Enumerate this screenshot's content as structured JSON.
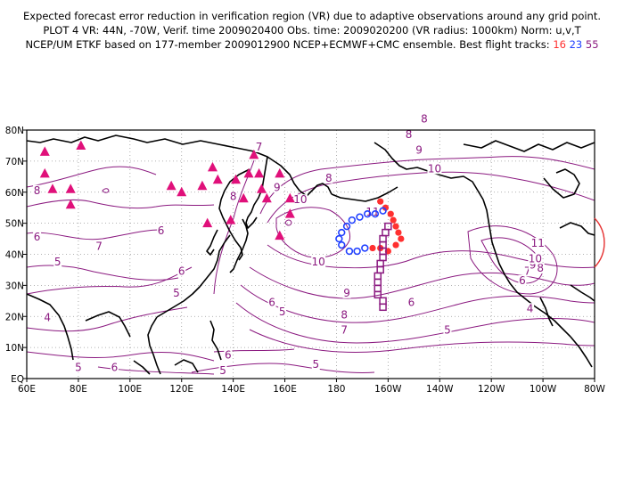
{
  "header": {
    "line1": "Expected forecast error reduction in verification region (VR) due to adaptive observations around any grid point.",
    "line2": "PLOT 4 VR: 44N, -70W, Verif. time 2009020400 Obs. time: 2009020200 (VR radius: 1000km) Norm: u,v,T",
    "line3_prefix": "NCEP/UM ETKF based on 177-member 2009012900 NCEP+ECMWF+CMC ensemble. Best flight tracks:",
    "tracks": [
      "16",
      "23",
      "55"
    ]
  },
  "axes": {
    "lon_ticks": [
      "60E",
      "80E",
      "100E",
      "120E",
      "140E",
      "160E",
      "180",
      "160W",
      "140W",
      "120W",
      "100W",
      "80W"
    ],
    "lat_ticks": [
      "EQ",
      "10N",
      "20N",
      "30N",
      "40N",
      "50N",
      "60N",
      "70N",
      "80N"
    ]
  },
  "contour_labels": [
    {
      "text": "8",
      "lon": 64,
      "lat": 60
    },
    {
      "text": "6",
      "lon": 64,
      "lat": 45
    },
    {
      "text": "5",
      "lon": 72,
      "lat": 37
    },
    {
      "text": "7",
      "lon": 88,
      "lat": 42
    },
    {
      "text": "6",
      "lon": 112,
      "lat": 47
    },
    {
      "text": "6",
      "lon": 120,
      "lat": 34
    },
    {
      "text": "5",
      "lon": 118,
      "lat": 27
    },
    {
      "text": "4",
      "lon": 68,
      "lat": 19
    },
    {
      "text": "5",
      "lon": 80,
      "lat": 3
    },
    {
      "text": "6",
      "lon": 94,
      "lat": 3
    },
    {
      "text": "5",
      "lon": 136,
      "lat": 2
    },
    {
      "text": "6",
      "lon": 138,
      "lat": 7
    },
    {
      "text": "5",
      "lon": 172,
      "lat": 4
    },
    {
      "text": "6",
      "lon": 155,
      "lat": 24
    },
    {
      "text": "5",
      "lon": 159,
      "lat": 21
    },
    {
      "text": "7",
      "lon": 150,
      "lat": 74
    },
    {
      "text": "8",
      "lon": 177,
      "lat": 64
    },
    {
      "text": "8",
      "lon": 208,
      "lat": 78
    },
    {
      "text": "8",
      "lon": 214,
      "lat": 83
    },
    {
      "text": "9",
      "lon": 212,
      "lat": 73
    },
    {
      "text": "10",
      "lon": 218,
      "lat": 67
    },
    {
      "text": "8",
      "lon": 140,
      "lat": 58
    },
    {
      "text": "9",
      "lon": 157,
      "lat": 61
    },
    {
      "text": "10",
      "lon": 166,
      "lat": 57
    },
    {
      "text": "10",
      "lon": 173,
      "lat": 37
    },
    {
      "text": "11",
      "lon": 194,
      "lat": 53
    },
    {
      "text": "9",
      "lon": 184,
      "lat": 27
    },
    {
      "text": "8",
      "lon": 183,
      "lat": 20
    },
    {
      "text": "7",
      "lon": 183,
      "lat": 15
    },
    {
      "text": "6",
      "lon": 209,
      "lat": 24
    },
    {
      "text": "5",
      "lon": 223,
      "lat": 15
    },
    {
      "text": "4",
      "lon": 255,
      "lat": 22
    },
    {
      "text": "6",
      "lon": 252,
      "lat": 31
    },
    {
      "text": "7",
      "lon": 254,
      "lat": 34
    },
    {
      "text": "8",
      "lon": 259,
      "lat": 35
    },
    {
      "text": "9",
      "lon": 256,
      "lat": 36
    },
    {
      "text": "10",
      "lon": 257,
      "lat": 38
    },
    {
      "text": "11",
      "lon": 258,
      "lat": 43
    }
  ],
  "triangle_sites": [
    [
      67,
      73
    ],
    [
      81,
      75
    ],
    [
      67,
      66
    ],
    [
      70,
      61
    ],
    [
      77,
      61
    ],
    [
      77,
      56
    ],
    [
      116,
      62
    ],
    [
      120,
      60
    ],
    [
      128,
      62
    ],
    [
      132,
      68
    ],
    [
      134,
      64
    ],
    [
      141,
      64
    ],
    [
      144,
      58
    ],
    [
      146,
      66
    ],
    [
      148,
      72
    ],
    [
      150,
      66
    ],
    [
      151,
      61
    ],
    [
      153,
      58
    ],
    [
      158,
      66
    ],
    [
      162,
      58
    ],
    [
      162,
      53
    ],
    [
      139,
      51
    ],
    [
      130,
      50
    ],
    [
      158,
      46
    ]
  ],
  "flight_tracks": {
    "t16": {
      "color": "#ff3030",
      "points": [
        [
          197,
          57
        ],
        [
          199,
          55
        ],
        [
          201,
          53
        ],
        [
          202,
          51
        ],
        [
          203,
          49
        ],
        [
          204,
          47
        ],
        [
          205,
          45
        ],
        [
          203,
          43
        ],
        [
          200,
          41
        ],
        [
          197,
          42
        ],
        [
          194,
          42
        ]
      ]
    },
    "t23": {
      "color": "#2040ff",
      "points": [
        [
          198,
          54
        ],
        [
          195,
          53
        ],
        [
          192,
          53
        ],
        [
          189,
          52
        ],
        [
          186,
          51
        ],
        [
          184,
          49
        ],
        [
          182,
          47
        ],
        [
          181,
          45
        ],
        [
          182,
          43
        ],
        [
          185,
          41
        ],
        [
          188,
          41
        ],
        [
          191,
          42
        ]
      ]
    },
    "t55": {
      "color": "#8b1a80",
      "points": [
        [
          200,
          49
        ],
        [
          199,
          47
        ],
        [
          198,
          45
        ],
        [
          198,
          43
        ],
        [
          198,
          41
        ],
        [
          198,
          39
        ],
        [
          197,
          37
        ],
        [
          197,
          35
        ],
        [
          196,
          33
        ],
        [
          196,
          31
        ],
        [
          196,
          29
        ],
        [
          196,
          27
        ],
        [
          198,
          25
        ],
        [
          198,
          23
        ]
      ]
    }
  }
}
